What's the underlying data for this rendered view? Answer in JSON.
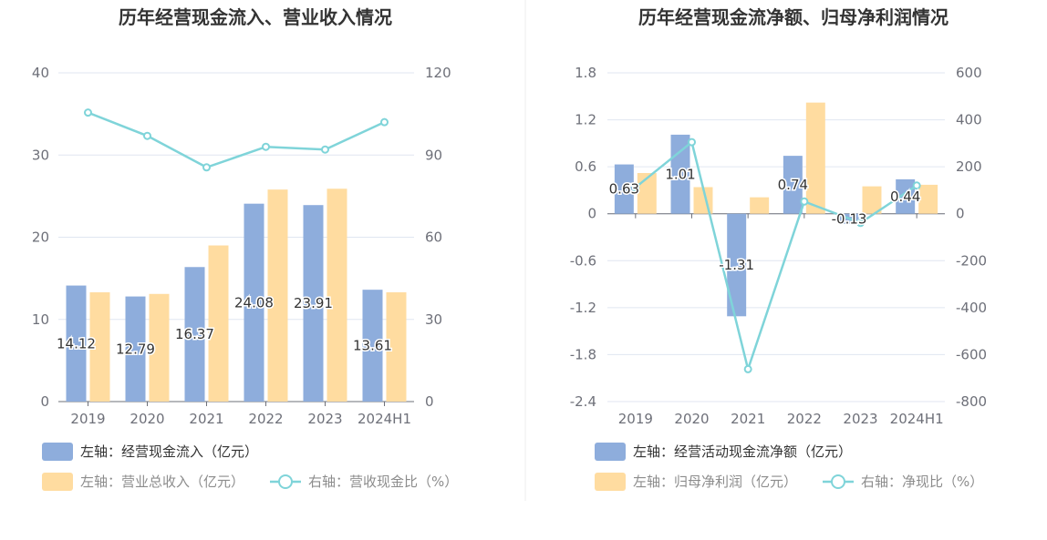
{
  "colors": {
    "bar_left": "#8eaddc",
    "bar_right": "#ffdca0",
    "line": "#7fd4d9",
    "grid": "#e0e6f1",
    "axis": "#6e7079",
    "divider": "#eeeeee"
  },
  "chart_data": [
    {
      "type": "bar+line",
      "title": "历年经营现金流入、营业收入情况",
      "categories": [
        "2019",
        "2020",
        "2021",
        "2022",
        "2023",
        "2024H1"
      ],
      "y_left": {
        "ticks": [
          "0",
          "10",
          "20",
          "30",
          "40"
        ],
        "range": [
          0,
          40
        ]
      },
      "y_right": {
        "ticks": [
          "0",
          "30",
          "60",
          "90",
          "120"
        ],
        "range": [
          0,
          120
        ]
      },
      "grid": true,
      "series": [
        {
          "name": "左轴：经营现金流入（亿元）",
          "kind": "bar",
          "axis": "left",
          "color_key": "bar_left",
          "values": [
            14.12,
            12.79,
            16.37,
            24.08,
            23.91,
            13.61
          ],
          "labels": [
            "14.12",
            "12.79",
            "16.37",
            "24.08",
            "23.91",
            "13.61"
          ]
        },
        {
          "name": "左轴：营业总收入（亿元）",
          "kind": "bar",
          "axis": "left",
          "color_key": "bar_right",
          "values": [
            13.3,
            13.1,
            19.0,
            25.8,
            25.9,
            13.3
          ]
        },
        {
          "name": "右轴：营收现金比（%）",
          "kind": "line",
          "axis": "right",
          "color_key": "line",
          "values": [
            105.5,
            97.0,
            85.5,
            93.0,
            92.0,
            102.0
          ]
        }
      ],
      "legend_rows": [
        [
          "0"
        ],
        [
          "1",
          "2"
        ]
      ],
      "legend_placement": "bottom-left"
    },
    {
      "type": "bar+line",
      "title": "历年经营现金流净额、归母净利润情况",
      "categories": [
        "2019",
        "2020",
        "2021",
        "2022",
        "2023",
        "2024H1"
      ],
      "y_left": {
        "ticks": [
          "-2.4",
          "-1.8",
          "-1.2",
          "-0.6",
          "0",
          "0.6",
          "1.2",
          "1.8"
        ],
        "range": [
          -2.4,
          1.8
        ]
      },
      "y_right": {
        "ticks": [
          "-800",
          "-600",
          "-400",
          "-200",
          "0",
          "200",
          "400",
          "600"
        ],
        "range": [
          -800,
          600
        ]
      },
      "grid": true,
      "series": [
        {
          "name": "左轴：经营活动现金流净额（亿元）",
          "kind": "bar",
          "axis": "left",
          "color_key": "bar_left",
          "values": [
            0.63,
            1.01,
            -1.31,
            0.74,
            -0.13,
            0.44
          ],
          "labels": [
            "0.63",
            "1.01",
            "-1.31",
            "0.74",
            "-0.13",
            "0.44"
          ]
        },
        {
          "name": "左轴：归母净利润（亿元）",
          "kind": "bar",
          "axis": "left",
          "color_key": "bar_right",
          "values": [
            0.52,
            0.34,
            0.21,
            1.42,
            0.35,
            0.37
          ]
        },
        {
          "name": "右轴：净现比（%）",
          "kind": "line",
          "axis": "right",
          "color_key": "line",
          "values": [
            112,
            305,
            -662,
            52,
            -39,
            120
          ]
        }
      ],
      "legend_rows": [
        [
          "0"
        ],
        [
          "1",
          "2"
        ]
      ],
      "legend_placement": "bottom-left"
    }
  ]
}
